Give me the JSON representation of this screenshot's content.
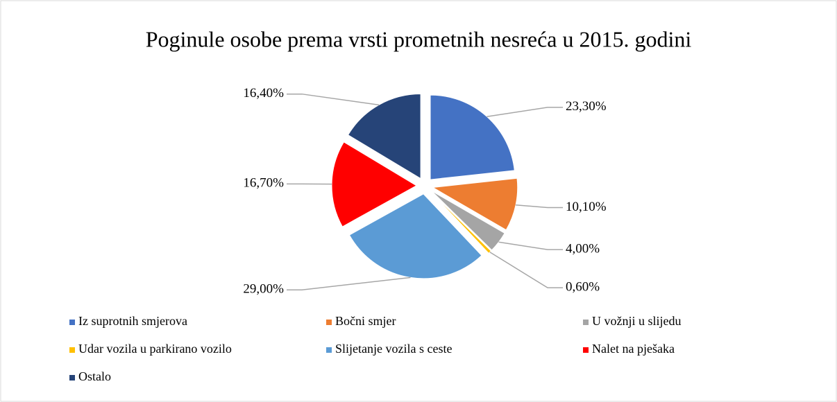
{
  "chart_data": {
    "type": "pie",
    "title": "Poginule osobe prema vrsti prometnih nesreća u 2015. godini",
    "categories": [
      "Iz suprotnih smjerova",
      "Bočni smjer",
      "U vožnji u slijedu",
      "Udar vozila u parkirano vozilo",
      "Slijetanje vozila s ceste",
      "Nalet na pješaka",
      "Ostalo"
    ],
    "values": [
      23.3,
      10.1,
      4.0,
      0.6,
      29.0,
      16.7,
      16.4
    ],
    "value_labels": [
      "23,30%",
      "10,10%",
      "4,00%",
      "0,60%",
      "29,00%",
      "16,70%",
      "16,40%"
    ],
    "colors": [
      "#4472c4",
      "#ed7d31",
      "#a5a5a5",
      "#ffc000",
      "#5b9bd5",
      "#ff0000",
      "#264478"
    ],
    "legend": "bottom"
  }
}
